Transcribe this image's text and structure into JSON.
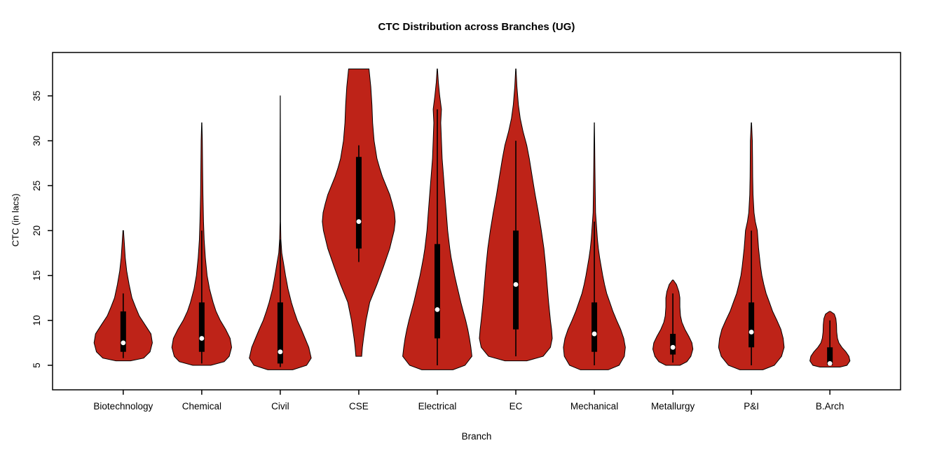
{
  "chart_data": {
    "type": "violin",
    "title": "CTC Distribution across Branches (UG)",
    "xlabel": "Branch",
    "ylabel": "CTC (in lacs)",
    "ylim": [
      2.27,
      39.83
    ],
    "yticks": [
      5,
      10,
      15,
      20,
      25,
      30,
      35
    ],
    "grid": false,
    "legend": "none",
    "categories": [
      "Biotechnology",
      "Chemical",
      "Civil",
      "CSE",
      "Electrical",
      "EC",
      "Mechanical",
      "Metallurgy",
      "P&I",
      "B.Arch"
    ],
    "style": {
      "violin_fill": "#BE2318",
      "violin_outline": "#000000",
      "box_color": "#000000",
      "median_color": "#FFFFFF",
      "axis_color": "#000000",
      "background": "#FFFFFF"
    },
    "series": [
      {
        "name": "Biotechnology",
        "min": 5.5,
        "max": 20,
        "q1": 6.5,
        "q3": 11,
        "median": 7.5,
        "whisker": [
          5.8,
          13
        ],
        "width_scale": 0.8,
        "profile": [
          [
            5.5,
            0.25
          ],
          [
            5.8,
            0.7
          ],
          [
            6.5,
            0.92
          ],
          [
            7.5,
            1.0
          ],
          [
            8.5,
            0.95
          ],
          [
            9.5,
            0.75
          ],
          [
            10.5,
            0.55
          ],
          [
            11.5,
            0.42
          ],
          [
            12.5,
            0.3
          ],
          [
            14,
            0.2
          ],
          [
            15.5,
            0.12
          ],
          [
            17,
            0.07
          ],
          [
            18.5,
            0.04
          ],
          [
            20,
            0.01
          ]
        ]
      },
      {
        "name": "Chemical",
        "min": 5,
        "max": 32,
        "q1": 6.5,
        "q3": 12,
        "median": 8,
        "whisker": [
          5.2,
          20
        ],
        "width_scale": 0.82,
        "profile": [
          [
            5,
            0.3
          ],
          [
            5.4,
            0.75
          ],
          [
            6,
            0.92
          ],
          [
            7,
            1.0
          ],
          [
            8,
            0.95
          ],
          [
            9,
            0.8
          ],
          [
            10,
            0.62
          ],
          [
            11,
            0.48
          ],
          [
            12,
            0.38
          ],
          [
            13.5,
            0.26
          ],
          [
            15,
            0.18
          ],
          [
            17,
            0.12
          ],
          [
            19,
            0.08
          ],
          [
            21,
            0.06
          ],
          [
            24,
            0.04
          ],
          [
            27,
            0.03
          ],
          [
            30,
            0.02
          ],
          [
            32,
            0.005
          ]
        ]
      },
      {
        "name": "Civil",
        "min": 4.5,
        "max": 35,
        "q1": 5.2,
        "q3": 12,
        "median": 6.5,
        "whisker": [
          4.8,
          19
        ],
        "width_scale": 0.85,
        "profile": [
          [
            4.5,
            0.4
          ],
          [
            5,
            0.85
          ],
          [
            5.8,
            1.0
          ],
          [
            7,
            0.92
          ],
          [
            8,
            0.8
          ],
          [
            9,
            0.68
          ],
          [
            10,
            0.55
          ],
          [
            11,
            0.45
          ],
          [
            12,
            0.36
          ],
          [
            13.5,
            0.25
          ],
          [
            15,
            0.17
          ],
          [
            16.5,
            0.1
          ],
          [
            17.5,
            0.05
          ],
          [
            19,
            0.02
          ],
          [
            21,
            0.008
          ],
          [
            28,
            0.006
          ],
          [
            35,
            0.002
          ]
        ]
      },
      {
        "name": "CSE",
        "min": 6,
        "max": 38,
        "q1": 18,
        "q3": 28.2,
        "median": 21,
        "whisker": [
          16.5,
          29.5
        ],
        "width_scale": 1.0,
        "profile": [
          [
            6,
            0.08
          ],
          [
            7,
            0.1
          ],
          [
            8,
            0.13
          ],
          [
            10,
            0.2
          ],
          [
            12,
            0.3
          ],
          [
            14,
            0.5
          ],
          [
            16,
            0.68
          ],
          [
            18,
            0.85
          ],
          [
            20,
            0.97
          ],
          [
            21,
            1.0
          ],
          [
            22,
            0.98
          ],
          [
            23,
            0.92
          ],
          [
            24,
            0.85
          ],
          [
            25,
            0.75
          ],
          [
            26,
            0.65
          ],
          [
            27,
            0.57
          ],
          [
            28,
            0.5
          ],
          [
            30,
            0.42
          ],
          [
            32,
            0.38
          ],
          [
            34,
            0.36
          ],
          [
            36,
            0.33
          ],
          [
            38,
            0.28
          ]
        ]
      },
      {
        "name": "Electrical",
        "min": 4.5,
        "max": 38,
        "q1": 8,
        "q3": 18.5,
        "median": 11.2,
        "whisker": [
          5,
          33.5
        ],
        "width_scale": 0.95,
        "profile": [
          [
            4.5,
            0.45
          ],
          [
            5,
            0.8
          ],
          [
            6,
            1.0
          ],
          [
            7,
            0.97
          ],
          [
            8,
            0.93
          ],
          [
            9,
            0.88
          ],
          [
            10,
            0.82
          ],
          [
            11,
            0.75
          ],
          [
            12,
            0.68
          ],
          [
            13,
            0.62
          ],
          [
            14,
            0.56
          ],
          [
            15,
            0.5
          ],
          [
            16,
            0.45
          ],
          [
            17,
            0.4
          ],
          [
            18,
            0.36
          ],
          [
            20,
            0.3
          ],
          [
            22,
            0.26
          ],
          [
            24,
            0.22
          ],
          [
            26,
            0.18
          ],
          [
            28,
            0.14
          ],
          [
            30,
            0.12
          ],
          [
            32,
            0.1
          ],
          [
            33.5,
            0.12
          ],
          [
            35,
            0.07
          ],
          [
            36.5,
            0.03
          ],
          [
            38,
            0.005
          ]
        ]
      },
      {
        "name": "EC",
        "min": 5.5,
        "max": 38,
        "q1": 9,
        "q3": 20,
        "median": 14,
        "whisker": [
          6,
          30
        ],
        "width_scale": 1.0,
        "profile": [
          [
            5.5,
            0.3
          ],
          [
            6,
            0.75
          ],
          [
            7,
            0.95
          ],
          [
            8,
            1.0
          ],
          [
            9,
            0.98
          ],
          [
            10,
            0.95
          ],
          [
            12,
            0.9
          ],
          [
            14,
            0.86
          ],
          [
            16,
            0.82
          ],
          [
            18,
            0.77
          ],
          [
            20,
            0.7
          ],
          [
            22,
            0.62
          ],
          [
            24,
            0.53
          ],
          [
            26,
            0.45
          ],
          [
            28,
            0.37
          ],
          [
            29.5,
            0.3
          ],
          [
            31,
            0.2
          ],
          [
            32.5,
            0.12
          ],
          [
            34,
            0.07
          ],
          [
            36,
            0.03
          ],
          [
            38,
            0.005
          ]
        ]
      },
      {
        "name": "Mechanical",
        "min": 4.5,
        "max": 32,
        "q1": 6.5,
        "q3": 12,
        "median": 8.5,
        "whisker": [
          5,
          21
        ],
        "width_scale": 0.85,
        "profile": [
          [
            4.5,
            0.45
          ],
          [
            5,
            0.8
          ],
          [
            6,
            0.97
          ],
          [
            7,
            1.0
          ],
          [
            8,
            0.95
          ],
          [
            9,
            0.85
          ],
          [
            10,
            0.72
          ],
          [
            11,
            0.6
          ],
          [
            12,
            0.5
          ],
          [
            13,
            0.4
          ],
          [
            14,
            0.33
          ],
          [
            15,
            0.27
          ],
          [
            16,
            0.22
          ],
          [
            17,
            0.17
          ],
          [
            18,
            0.13
          ],
          [
            19,
            0.1
          ],
          [
            20,
            0.08
          ],
          [
            21,
            0.06
          ],
          [
            22,
            0.04
          ],
          [
            24,
            0.03
          ],
          [
            27,
            0.02
          ],
          [
            30,
            0.01
          ],
          [
            32,
            0.003
          ]
        ]
      },
      {
        "name": "Metallurgy",
        "min": 5,
        "max": 14.5,
        "q1": 6.2,
        "q3": 8.5,
        "median": 7,
        "whisker": [
          5.3,
          13
        ],
        "width_scale": 0.55,
        "profile": [
          [
            5,
            0.35
          ],
          [
            5.4,
            0.7
          ],
          [
            6,
            0.9
          ],
          [
            6.8,
            1.0
          ],
          [
            7.5,
            0.95
          ],
          [
            8.2,
            0.8
          ],
          [
            9,
            0.6
          ],
          [
            9.8,
            0.45
          ],
          [
            10.5,
            0.38
          ],
          [
            11.5,
            0.35
          ],
          [
            12.5,
            0.35
          ],
          [
            13.2,
            0.3
          ],
          [
            14,
            0.18
          ],
          [
            14.5,
            0.02
          ]
        ]
      },
      {
        "name": "P&I",
        "min": 4.5,
        "max": 32,
        "q1": 7,
        "q3": 12,
        "median": 8.7,
        "whisker": [
          5,
          20
        ],
        "width_scale": 0.9,
        "profile": [
          [
            4.5,
            0.35
          ],
          [
            5,
            0.7
          ],
          [
            6,
            0.92
          ],
          [
            7,
            1.0
          ],
          [
            8,
            0.97
          ],
          [
            9,
            0.9
          ],
          [
            10,
            0.78
          ],
          [
            11,
            0.65
          ],
          [
            12,
            0.55
          ],
          [
            13,
            0.45
          ],
          [
            14,
            0.38
          ],
          [
            15,
            0.32
          ],
          [
            16,
            0.28
          ],
          [
            17,
            0.25
          ],
          [
            18,
            0.22
          ],
          [
            19,
            0.2
          ],
          [
            20,
            0.18
          ],
          [
            21,
            0.12
          ],
          [
            22,
            0.08
          ],
          [
            24,
            0.05
          ],
          [
            26,
            0.04
          ],
          [
            28,
            0.035
          ],
          [
            30,
            0.03
          ],
          [
            32,
            0.005
          ]
        ]
      },
      {
        "name": "B.Arch",
        "min": 4.8,
        "max": 11,
        "q1": 5,
        "q3": 7,
        "median": 5.2,
        "whisker": [
          4.9,
          10
        ],
        "width_scale": 0.55,
        "profile": [
          [
            4.8,
            0.5
          ],
          [
            5,
            0.85
          ],
          [
            5.5,
            1.0
          ],
          [
            6,
            0.95
          ],
          [
            6.5,
            0.8
          ],
          [
            7,
            0.6
          ],
          [
            7.5,
            0.45
          ],
          [
            8,
            0.38
          ],
          [
            8.7,
            0.34
          ],
          [
            9.5,
            0.33
          ],
          [
            10.2,
            0.3
          ],
          [
            10.7,
            0.22
          ],
          [
            11,
            0.03
          ]
        ]
      }
    ]
  }
}
